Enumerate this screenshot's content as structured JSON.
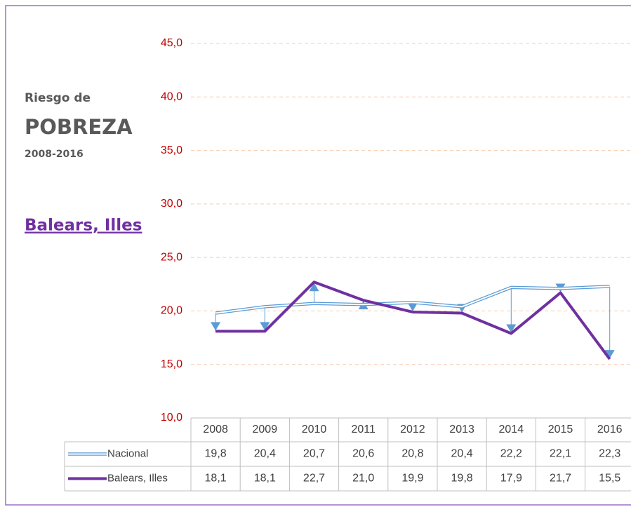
{
  "chart_data": {
    "type": "line",
    "title_prefix": "Riesgo de",
    "title": "POBREZA",
    "subtitle": "2008-2016",
    "region": "Balears, Illes",
    "categories": [
      "2008",
      "2009",
      "2010",
      "2011",
      "2012",
      "2013",
      "2014",
      "2015",
      "2016"
    ],
    "series": [
      {
        "name": "Nacional",
        "color": "#5b9bd5",
        "values": [
          19.8,
          20.4,
          20.7,
          20.6,
          20.8,
          20.4,
          22.2,
          22.1,
          22.3
        ],
        "value_labels": [
          "19,8",
          "20,4",
          "20,7",
          "20,6",
          "20,8",
          "20,4",
          "22,2",
          "22,1",
          "22,3"
        ]
      },
      {
        "name": "Balears, Illes",
        "color": "#7030a0",
        "values": [
          18.1,
          18.1,
          22.7,
          21.0,
          19.9,
          19.8,
          17.9,
          21.7,
          15.5
        ],
        "value_labels": [
          "18,1",
          "18,1",
          "22,7",
          "21,0",
          "19,9",
          "19,8",
          "17,9",
          "21,7",
          "15,5"
        ]
      }
    ],
    "ylim": [
      10,
      45
    ],
    "yticks": [
      {
        "value": 10,
        "label": "10,0"
      },
      {
        "value": 15,
        "label": "15,0"
      },
      {
        "value": 20,
        "label": "20,0"
      },
      {
        "value": 25,
        "label": "25,0"
      },
      {
        "value": 30,
        "label": "30,0"
      },
      {
        "value": 35,
        "label": "35,0"
      },
      {
        "value": 40,
        "label": "40,0"
      },
      {
        "value": 45,
        "label": "45,0"
      }
    ],
    "grid": true
  }
}
